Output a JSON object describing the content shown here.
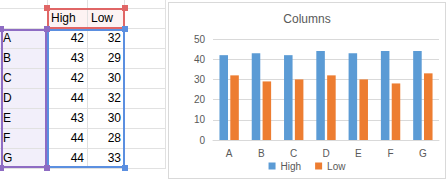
{
  "chart_data": {
    "type": "bar",
    "title": "Columns",
    "categories": [
      "A",
      "B",
      "C",
      "D",
      "E",
      "F",
      "G"
    ],
    "series": [
      {
        "name": "High",
        "color": "#5b9bd5",
        "values": [
          42,
          43,
          42,
          44,
          43,
          44,
          44
        ]
      },
      {
        "name": "Low",
        "color": "#ed7d31",
        "values": [
          32,
          29,
          30,
          32,
          30,
          28,
          33
        ]
      }
    ],
    "ylim": [
      0,
      50
    ],
    "yticks": [
      0,
      10,
      20,
      30,
      40,
      50
    ],
    "grid": true,
    "legend": "bottom"
  }
}
